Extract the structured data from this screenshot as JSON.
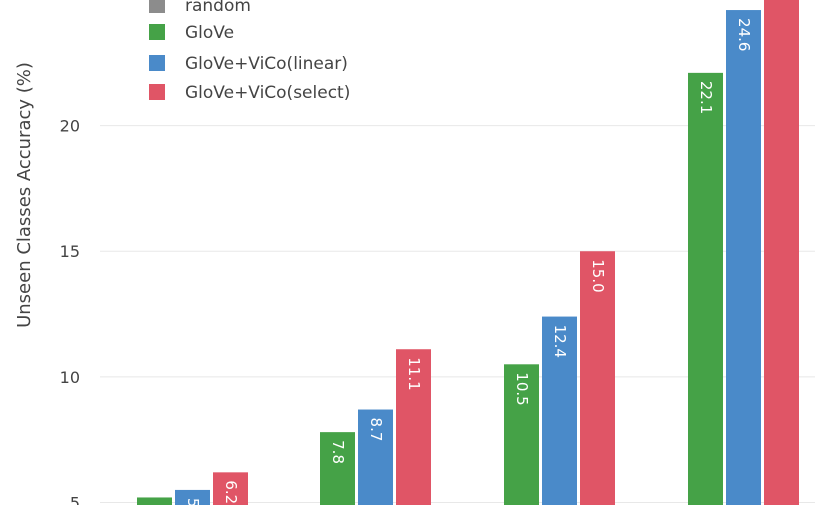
{
  "chart_data": {
    "type": "bar",
    "ylabel": "Unseen Classes Accuracy (%)",
    "ylim": [
      4.9,
      25.0
    ],
    "yticks": [
      5,
      10,
      15,
      20
    ],
    "grid": true,
    "legend_placement": "top-left",
    "categories": [
      "",
      "",
      "",
      ""
    ],
    "series": [
      {
        "name": "random",
        "color": "#8c8c8c",
        "values": [
          null,
          null,
          null,
          null
        ],
        "labels": [
          "",
          "",
          "",
          ""
        ]
      },
      {
        "name": "GloVe",
        "color": "#45a247",
        "values": [
          5.2,
          7.8,
          10.5,
          22.1
        ],
        "labels": [
          "",
          "7.8",
          "10.5",
          "22.1"
        ]
      },
      {
        "name": "GloVe+ViCo(linear)",
        "color": "#4a8ac9",
        "values": [
          5.5,
          8.7,
          12.4,
          24.6
        ],
        "labels": [
          "5.",
          "8.7",
          "12.4",
          "24.6"
        ]
      },
      {
        "name": "GloVe+ViCo(select)",
        "color": "#e05566",
        "values": [
          6.2,
          11.1,
          15.0,
          25.0
        ],
        "labels": [
          "6.2",
          "11.1",
          "15.0",
          ""
        ]
      }
    ]
  }
}
